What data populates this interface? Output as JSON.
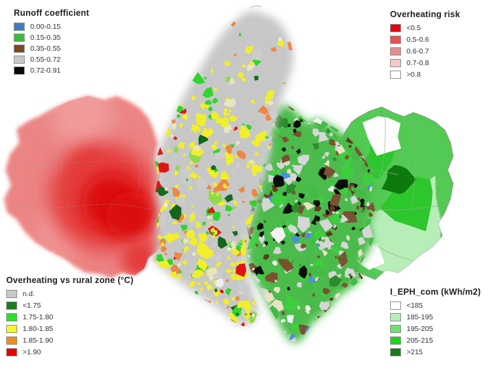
{
  "legends": {
    "runoff": {
      "title": "Runoff coefficient",
      "items": [
        {
          "label": "0.00-0.15",
          "color": "#3f7fc1"
        },
        {
          "label": "0.15-0.35",
          "color": "#3dbb3d"
        },
        {
          "label": "0.35-0.55",
          "color": "#7a4a22"
        },
        {
          "label": "0.55-0.72",
          "color": "#c9c9c9"
        },
        {
          "label": "0.72-0.91",
          "color": "#0a0a0a"
        }
      ]
    },
    "overheating_risk": {
      "title": "Overheating risk",
      "items": [
        {
          "label": "<0.5",
          "color": "#e30613"
        },
        {
          "label": "0.5-0.6",
          "color": "#e45252"
        },
        {
          "label": "0.6-0.7",
          "color": "#e29090"
        },
        {
          "label": "0.7-0.8",
          "color": "#f2c8c8"
        },
        {
          "label": ">0.8",
          "color": "#ffffff"
        }
      ]
    },
    "overheating_rural": {
      "title": "Overheating vs rural zone (°C)",
      "items": [
        {
          "label": "n.d.",
          "color": "#c9c9c9"
        },
        {
          "label": "<1.75",
          "color": "#1d7a1d"
        },
        {
          "label": "1.75-1.80",
          "color": "#2ae02a"
        },
        {
          "label": "1.80-1.85",
          "color": "#f5f52c"
        },
        {
          "label": "1.85-1.90",
          "color": "#ef8c1e"
        },
        {
          "label": ">1.90",
          "color": "#e60000"
        }
      ]
    },
    "eph": {
      "title": "I_EPH_com (kWh/m2)",
      "items": [
        {
          "label": "<185",
          "color": "#ffffff"
        },
        {
          "label": "185-195",
          "color": "#b9f0b9"
        },
        {
          "label": "195-205",
          "color": "#70e070"
        },
        {
          "label": "205-215",
          "color": "#1bd51b"
        },
        {
          "label": ">215",
          "color": "#187a18"
        }
      ]
    }
  },
  "map": {
    "west": {
      "name": "overheating-risk-zone",
      "base": "#ec8484",
      "light": "#f09b9b",
      "mid": "#e43b3b",
      "core": "#dc0f0f",
      "border": "#a0a0a0"
    },
    "center": {
      "name": "overheating-vs-rural-zone",
      "base": "#c7c7c7",
      "palette": [
        [
          "#f1ee2c",
          48
        ],
        [
          "#2fd42f",
          13
        ],
        [
          "#ee8743",
          11
        ],
        [
          "#cccccc",
          12
        ],
        [
          "#156a1c",
          3
        ],
        [
          "#dc1812",
          2
        ],
        [
          "#e9e4c2",
          4
        ],
        [
          "#90d84f",
          3
        ],
        [
          "#efefef",
          2
        ]
      ]
    },
    "centerEast": {
      "name": "runoff-coefficient-zone",
      "base": "#4cbb4c",
      "palette": [
        [
          "#7a5230",
          15
        ],
        [
          "#5e3c1e",
          4
        ],
        [
          "#0d0d0d",
          15
        ],
        [
          "#d6d6d6",
          20
        ],
        [
          "#45b945",
          15
        ],
        [
          "#2e8b2e",
          8
        ],
        [
          "#e8e2c4",
          4
        ],
        [
          "#3ecf3e",
          12
        ],
        [
          "#4a90d9",
          1.5
        ],
        [
          "#f2f2f2",
          2
        ]
      ]
    },
    "east": {
      "name": "eph-com-zone",
      "base": "#53ca53",
      "pale": "#b7edb7",
      "bright": "#2dc72d",
      "dark": "#0e7a0e",
      "white": "#fdfdfd",
      "border": "#93ab93"
    },
    "accents": {
      "red": "#dd1512",
      "blue": "#4a90d9",
      "darkGreen": "#15651c",
      "mark": "#b5b5b5"
    }
  }
}
